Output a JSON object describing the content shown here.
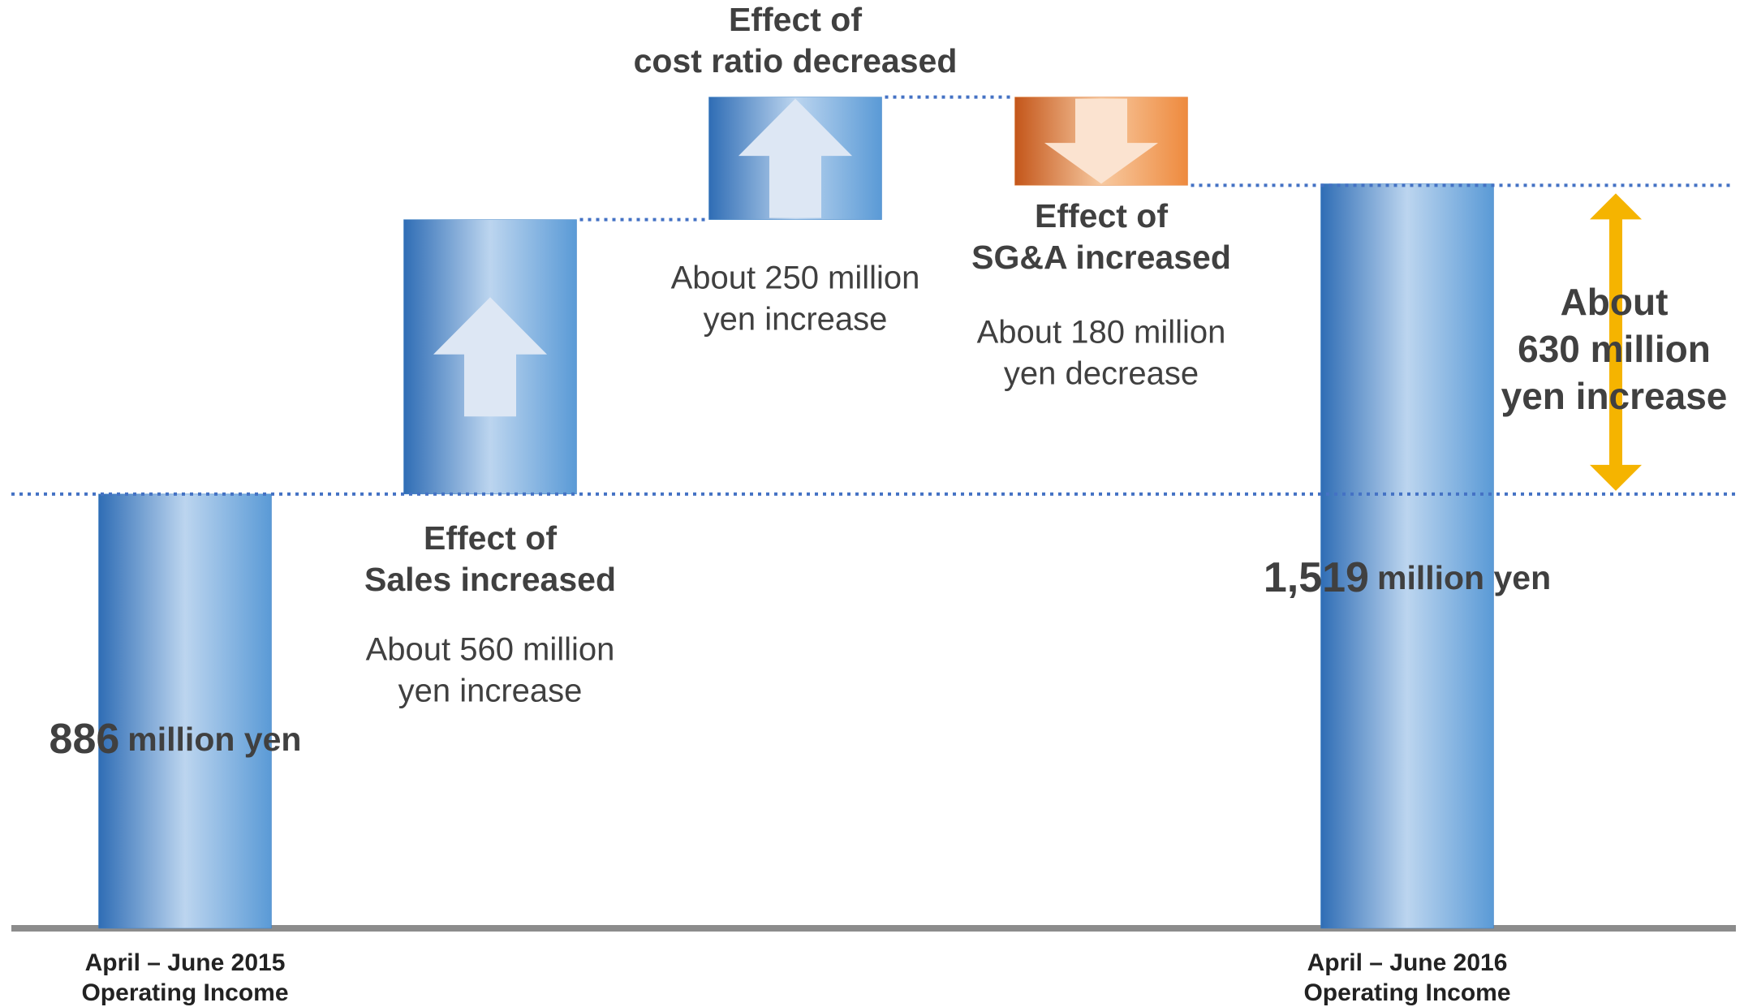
{
  "chart_data": {
    "type": "waterfall",
    "categories": [
      [
        "April – June 2015",
        "Operating Income"
      ],
      [
        "Effect of",
        "Sales increased"
      ],
      [
        "Effect of",
        "cost ratio decreased"
      ],
      [
        "Effect of",
        "SG&A increased"
      ],
      [
        "April – June 2016",
        "Operating Income"
      ]
    ],
    "values": [
      886,
      560,
      250,
      -180,
      1519
    ],
    "kinds": [
      "total",
      "increase",
      "increase",
      "decrease",
      "total"
    ],
    "value_labels": [
      [
        "886",
        "million yen"
      ],
      [
        "About 560 million",
        "yen increase"
      ],
      [
        "About 250 million",
        "yen increase"
      ],
      [
        "About 180 million",
        "yen decrease"
      ],
      [
        "1,519",
        "million yen"
      ]
    ],
    "colors": {
      "total": "#3a7fc4",
      "increase": "#3a7fc4",
      "decrease": "#e07a30"
    },
    "annotation": {
      "text": [
        "About",
        "630 million",
        "yen increase"
      ],
      "color": "#f5b400"
    }
  }
}
